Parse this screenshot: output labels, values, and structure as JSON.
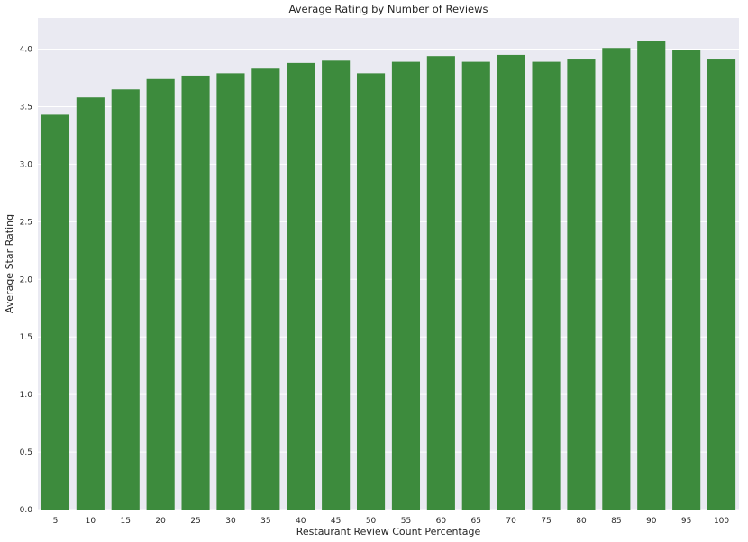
{
  "chart_data": {
    "type": "bar",
    "title": "Average Rating by Number of Reviews",
    "xlabel": "Restaurant Review Count Percentage",
    "ylabel": "Average Star Rating",
    "categories": [
      "5",
      "10",
      "15",
      "20",
      "25",
      "30",
      "35",
      "40",
      "45",
      "50",
      "55",
      "60",
      "65",
      "70",
      "75",
      "80",
      "85",
      "90",
      "95",
      "100"
    ],
    "values": [
      3.43,
      3.58,
      3.65,
      3.74,
      3.77,
      3.79,
      3.83,
      3.88,
      3.9,
      3.79,
      3.89,
      3.94,
      3.89,
      3.95,
      3.89,
      3.91,
      4.01,
      4.07,
      3.99,
      3.91
    ],
    "ylim": [
      0,
      4.27
    ],
    "yticks": [
      "0.0",
      "0.5",
      "1.0",
      "1.5",
      "2.0",
      "2.5",
      "3.0",
      "3.5",
      "4.0"
    ],
    "grid": true,
    "colors": {
      "bar": "#3d8b3d",
      "plot_background": "#eaeaf2",
      "grid": "#ffffff"
    }
  }
}
